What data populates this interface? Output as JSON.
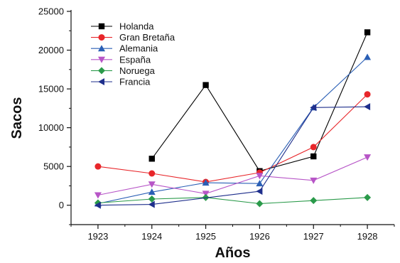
{
  "chart_data": {
    "type": "line",
    "xlabel": "Años",
    "ylabel": "Sacos",
    "x": [
      1923,
      1924,
      1925,
      1926,
      1927,
      1928
    ],
    "xlim": [
      1922.5,
      1928.5
    ],
    "ylim": [
      -2500,
      25000
    ],
    "yticks": [
      0,
      5000,
      10000,
      15000,
      20000,
      25000
    ],
    "xticks": [
      1923,
      1924,
      1925,
      1926,
      1927,
      1928
    ],
    "legend_position": "top-left",
    "grid": false,
    "series": [
      {
        "name": "Holanda",
        "color": "#000000",
        "marker": "square",
        "points": [
          [
            1924,
            6000
          ],
          [
            1925,
            15500
          ],
          [
            1926,
            4400
          ],
          [
            1927,
            6300
          ],
          [
            1928,
            22300
          ]
        ]
      },
      {
        "name": "Gran Bretaña",
        "color": "#e8262a",
        "marker": "circle",
        "points": [
          [
            1923,
            5000
          ],
          [
            1924,
            4100
          ],
          [
            1925,
            3000
          ],
          [
            1926,
            4200
          ],
          [
            1927,
            7500
          ],
          [
            1928,
            14300
          ]
        ]
      },
      {
        "name": "Alemania",
        "color": "#2a5fb5",
        "marker": "triangle-up",
        "points": [
          [
            1923,
            200
          ],
          [
            1924,
            1700
          ],
          [
            1925,
            2900
          ],
          [
            1926,
            2800
          ],
          [
            1927,
            12600
          ],
          [
            1928,
            19100
          ]
        ]
      },
      {
        "name": "España",
        "color": "#b755c7",
        "marker": "triangle-down",
        "points": [
          [
            1923,
            1300
          ],
          [
            1924,
            2700
          ],
          [
            1925,
            1500
          ],
          [
            1926,
            3800
          ],
          [
            1927,
            3200
          ],
          [
            1928,
            6200
          ]
        ]
      },
      {
        "name": "Noruega",
        "color": "#2a9a4a",
        "marker": "diamond",
        "points": [
          [
            1923,
            300
          ],
          [
            1924,
            800
          ],
          [
            1925,
            1000
          ],
          [
            1926,
            200
          ],
          [
            1927,
            600
          ],
          [
            1928,
            1000
          ]
        ]
      },
      {
        "name": "Francia",
        "color": "#1f2f8c",
        "marker": "triangle-left",
        "points": [
          [
            1923,
            0
          ],
          [
            1924,
            100
          ],
          [
            1926,
            1800
          ],
          [
            1927,
            12600
          ],
          [
            1928,
            12700
          ]
        ]
      }
    ]
  }
}
